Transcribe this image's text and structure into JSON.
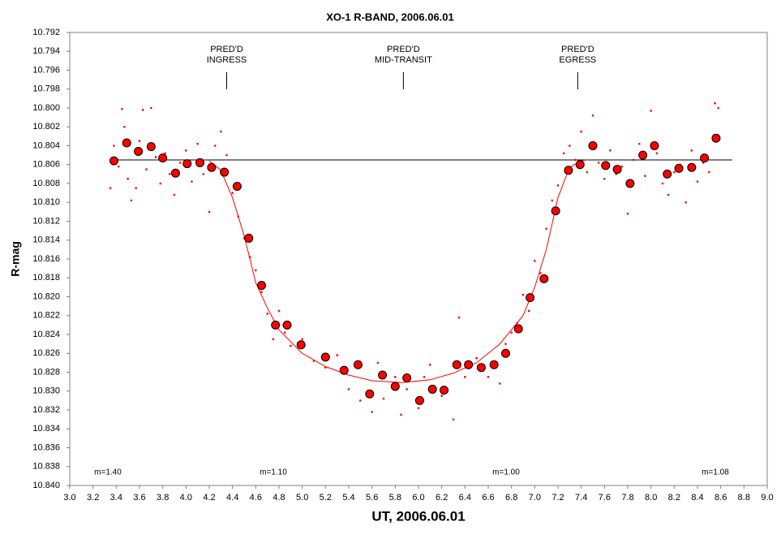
{
  "chart_data": {
    "type": "scatter",
    "title": "XO-1 R-BAND, 2006.06.01",
    "x_label": "UT, 2006.06.01",
    "y_label": "R-mag",
    "xlim": [
      3.0,
      9.0
    ],
    "ylim": [
      10.792,
      10.84
    ],
    "y_inverted": true,
    "grid": false,
    "xticks": [
      {
        "value": 3,
        "label": "3.0"
      },
      3.2,
      3.4,
      3.6,
      3.8,
      {
        "value": 4,
        "label": "4.0"
      },
      4.2,
      4.4,
      4.6,
      4.8,
      {
        "value": 5,
        "label": "5.0"
      },
      5.2,
      5.4,
      5.6,
      5.8,
      {
        "value": 6,
        "label": "6.0"
      },
      6.2,
      6.4,
      6.6,
      6.8,
      {
        "value": 7,
        "label": "7.0"
      },
      7.2,
      7.4,
      7.6,
      7.8,
      {
        "value": 8,
        "label": "8.0"
      },
      8.2,
      8.4,
      8.6,
      8.8,
      {
        "value": 9,
        "label": "9.0"
      }
    ],
    "yticks": [
      10.792,
      10.794,
      10.796,
      10.798,
      {
        "value": 10.8,
        "label": "10.800"
      },
      10.802,
      10.804,
      10.806,
      10.808,
      {
        "value": 10.81,
        "label": "10.810"
      },
      10.812,
      10.814,
      10.816,
      10.818,
      {
        "value": 10.82,
        "label": "10.820"
      },
      10.822,
      10.824,
      10.826,
      10.828,
      {
        "value": 10.83,
        "label": "10.830"
      },
      10.832,
      10.834,
      10.836,
      10.838,
      {
        "value": 10.84,
        "label": "10.840"
      }
    ],
    "series": [
      {
        "type": "line",
        "color": "#000000",
        "x": [
          3.4,
          8.7
        ],
        "values": [
          10.8055,
          10.8055
        ]
      },
      {
        "type": "scatter",
        "color": "#ff0000",
        "x": [
          3.35,
          3.38,
          3.42,
          3.45,
          3.47,
          3.5,
          3.53,
          3.57,
          3.6,
          3.63,
          3.66,
          3.7,
          3.74,
          3.78,
          3.82,
          3.86,
          3.9,
          3.95,
          4.0,
          4.05,
          4.1,
          4.15,
          4.2,
          4.25,
          4.3,
          4.35,
          4.4,
          4.45,
          4.5,
          4.55,
          4.6,
          4.65,
          4.7,
          4.75,
          4.8,
          4.85,
          4.9,
          5.0,
          5.1,
          5.2,
          5.3,
          5.4,
          5.5,
          5.6,
          5.65,
          5.7,
          5.8,
          5.85,
          5.9,
          6.0,
          6.05,
          6.1,
          6.2,
          6.3,
          6.35,
          6.4,
          6.5,
          6.6,
          6.7,
          6.75,
          6.8,
          6.85,
          6.9,
          6.95,
          7.0,
          7.05,
          7.1,
          7.15,
          7.2,
          7.25,
          7.3,
          7.35,
          7.4,
          7.45,
          7.5,
          7.55,
          7.6,
          7.65,
          7.7,
          7.75,
          7.8,
          7.85,
          7.9,
          7.95,
          8.0,
          8.05,
          8.1,
          8.15,
          8.2,
          8.25,
          8.3,
          8.35,
          8.4,
          8.45,
          8.5,
          8.55,
          8.58
        ],
        "values": [
          10.8085,
          10.804,
          10.8062,
          10.8001,
          10.802,
          10.8075,
          10.8098,
          10.8085,
          10.8035,
          10.8002,
          10.8065,
          10.8,
          10.8052,
          10.808,
          10.8048,
          10.807,
          10.8092,
          10.8058,
          10.8045,
          10.8078,
          10.8038,
          10.807,
          10.811,
          10.804,
          10.8025,
          10.805,
          10.809,
          10.8115,
          10.8138,
          10.8158,
          10.8172,
          10.8195,
          10.8218,
          10.8245,
          10.8215,
          10.8238,
          10.8252,
          10.8245,
          10.8268,
          10.8275,
          10.8262,
          10.8298,
          10.831,
          10.8322,
          10.827,
          10.8308,
          10.8285,
          10.8325,
          10.8298,
          10.8318,
          10.8285,
          10.8272,
          10.8305,
          10.833,
          10.8222,
          10.8285,
          10.8265,
          10.8285,
          10.8292,
          10.825,
          10.8238,
          10.8228,
          10.8198,
          10.8215,
          10.8162,
          10.8175,
          10.8128,
          10.8098,
          10.8082,
          10.8048,
          10.804,
          10.8055,
          10.8025,
          10.8068,
          10.8008,
          10.8058,
          10.8075,
          10.8045,
          10.807,
          10.8062,
          10.8112,
          10.8055,
          10.8038,
          10.8072,
          10.8003,
          10.8048,
          10.808,
          10.8092,
          10.8068,
          10.806,
          10.81,
          10.8045,
          10.8078,
          10.8058,
          10.8068,
          10.7995,
          10.8
        ]
      },
      {
        "type": "line",
        "color": "#ff0000",
        "x": [
          4.2,
          4.3,
          4.4,
          4.5,
          4.6,
          4.7,
          4.8,
          5.0,
          5.2,
          5.4,
          5.6,
          5.86,
          6.1,
          6.3,
          6.5,
          6.7,
          6.8,
          6.9,
          7.0,
          7.1,
          7.2,
          7.3,
          7.4,
          7.45
        ],
        "values": [
          10.8056,
          10.8066,
          10.8095,
          10.8135,
          10.8185,
          10.8212,
          10.8235,
          10.826,
          10.8274,
          10.8283,
          10.8289,
          10.8291,
          10.8288,
          10.8281,
          10.827,
          10.825,
          10.8235,
          10.822,
          10.819,
          10.815,
          10.8095,
          10.8063,
          10.8056,
          10.8055
        ]
      },
      {
        "type": "scatter",
        "color": "#ff0000",
        "edgecolor": "#000000",
        "x": [
          3.38,
          3.49,
          3.59,
          3.7,
          3.8,
          3.91,
          4.01,
          4.12,
          4.22,
          4.33,
          4.44,
          4.54,
          4.65,
          4.77,
          4.87,
          4.99,
          5.2,
          5.36,
          5.48,
          5.58,
          5.69,
          5.8,
          5.9,
          6.01,
          6.12,
          6.22,
          6.33,
          6.43,
          6.54,
          6.65,
          6.75,
          6.86,
          6.96,
          7.08,
          7.18,
          7.29,
          7.39,
          7.5,
          7.61,
          7.71,
          7.82,
          7.93,
          8.03,
          8.14,
          8.24,
          8.35,
          8.46,
          8.56
        ],
        "values": [
          10.8056,
          10.8037,
          10.8046,
          10.8041,
          10.8053,
          10.8069,
          10.8059,
          10.8058,
          10.8063,
          10.8068,
          10.8083,
          10.8138,
          10.8188,
          10.823,
          10.823,
          10.8251,
          10.8264,
          10.8278,
          10.8272,
          10.8303,
          10.8283,
          10.8295,
          10.8286,
          10.831,
          10.8298,
          10.8299,
          10.8272,
          10.8272,
          10.8275,
          10.8272,
          10.826,
          10.8234,
          10.8201,
          10.8181,
          10.8109,
          10.8066,
          10.806,
          10.804,
          10.8061,
          10.8065,
          10.808,
          10.805,
          10.804,
          10.807,
          10.8064,
          10.8063,
          10.8053,
          10.8032
        ]
      }
    ],
    "annotations": [
      {
        "lines": [
          "PRED'D",
          "INGRESS"
        ],
        "x": 4.35
      },
      {
        "lines": [
          "PRED'D",
          "MID-TRANSIT"
        ],
        "x": 5.87
      },
      {
        "lines": [
          "PRED'D",
          "EGRESS"
        ],
        "x": 7.37
      }
    ],
    "notes": [
      "m=1.40",
      "m=1.10",
      "m=1.00",
      "m=1.08"
    ]
  }
}
